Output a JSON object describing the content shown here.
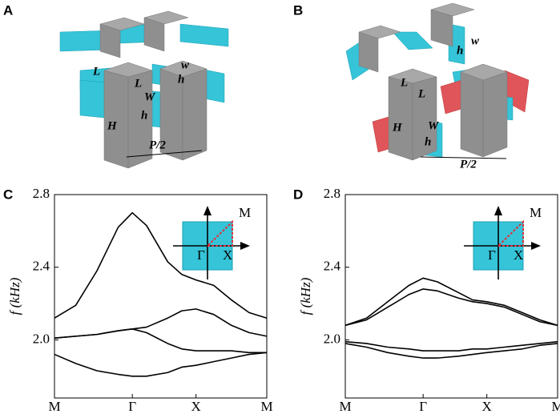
{
  "illustrations": [
    {
      "panel": "A",
      "labels": [
        "L",
        "L",
        "w",
        "h",
        "W",
        "h",
        "H",
        "P/2"
      ]
    },
    {
      "panel": "B",
      "labels": [
        "w",
        "h",
        "L",
        "L",
        "W",
        "h",
        "H",
        "P/2"
      ]
    }
  ],
  "chart_data": [
    {
      "type": "line",
      "panel": "C",
      "ylabel": "f (kHz)",
      "x": [
        0,
        0.3,
        0.6,
        0.9,
        1.1,
        1.3,
        1.6,
        1.8,
        2.0,
        2.25,
        2.5,
        2.75,
        3
      ],
      "xlim": [
        0,
        3
      ],
      "xticks": [
        {
          "value": 0,
          "label": "M"
        },
        {
          "value": 1.1,
          "label": "Γ"
        },
        {
          "value": 2.0,
          "label": "X"
        },
        {
          "value": 3,
          "label": "M"
        }
      ],
      "ylim": [
        1.68,
        2.8
      ],
      "yticks": [
        {
          "value": 2,
          "label": "2.0"
        },
        2.4,
        2.8
      ],
      "inset_labels": [
        "M",
        "Γ",
        "X"
      ],
      "series": [
        {
          "color": "#000000",
          "values": [
            2.12,
            2.19,
            2.38,
            2.62,
            2.7,
            2.63,
            2.43,
            2.36,
            2.33,
            2.3,
            2.22,
            2.15,
            2.12
          ]
        },
        {
          "color": "#000000",
          "values": [
            2.01,
            2.02,
            2.03,
            2.05,
            2.06,
            2.07,
            2.12,
            2.16,
            2.17,
            2.14,
            2.08,
            2.04,
            2.02
          ]
        },
        {
          "color": "#000000",
          "values": [
            2.01,
            2.02,
            2.03,
            2.05,
            2.06,
            2.04,
            1.98,
            1.95,
            1.94,
            1.94,
            1.94,
            1.93,
            1.93
          ]
        },
        {
          "color": "#000000",
          "values": [
            1.92,
            1.87,
            1.83,
            1.81,
            1.8,
            1.8,
            1.82,
            1.85,
            1.86,
            1.88,
            1.9,
            1.92,
            1.93
          ]
        }
      ]
    },
    {
      "type": "line",
      "panel": "D",
      "ylabel": "f (kHz)",
      "x": [
        0,
        0.3,
        0.6,
        0.9,
        1.1,
        1.3,
        1.6,
        1.8,
        2.0,
        2.25,
        2.5,
        2.75,
        3
      ],
      "xlim": [
        0,
        3
      ],
      "xticks": [
        {
          "value": 0,
          "label": "M"
        },
        {
          "value": 1.1,
          "label": "Γ"
        },
        {
          "value": 2.0,
          "label": "X"
        },
        {
          "value": 3,
          "label": "M"
        }
      ],
      "ylim": [
        1.68,
        2.8
      ],
      "yticks": [
        {
          "value": 2,
          "label": "2.0"
        },
        2.4,
        2.8
      ],
      "inset_labels": [
        "M",
        "Γ",
        "X"
      ],
      "series": [
        {
          "color": "#000000",
          "values": [
            2.08,
            2.12,
            2.21,
            2.3,
            2.34,
            2.32,
            2.26,
            2.22,
            2.21,
            2.19,
            2.15,
            2.11,
            2.08
          ]
        },
        {
          "color": "#000000",
          "values": [
            2.08,
            2.11,
            2.18,
            2.25,
            2.28,
            2.27,
            2.23,
            2.21,
            2.2,
            2.18,
            2.14,
            2.1,
            2.08
          ]
        },
        {
          "color": "#000000",
          "values": [
            1.99,
            1.98,
            1.96,
            1.95,
            1.94,
            1.94,
            1.94,
            1.95,
            1.95,
            1.96,
            1.97,
            1.98,
            1.99
          ]
        },
        {
          "color": "#000000",
          "values": [
            1.98,
            1.96,
            1.93,
            1.91,
            1.9,
            1.9,
            1.91,
            1.92,
            1.93,
            1.94,
            1.95,
            1.97,
            1.98
          ]
        }
      ]
    }
  ]
}
